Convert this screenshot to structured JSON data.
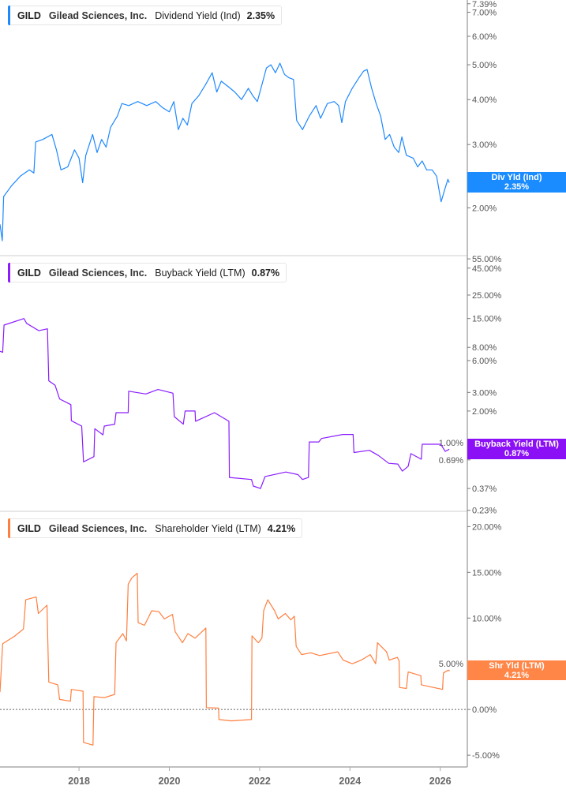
{
  "colors": {
    "dividend": "#1e88ff",
    "buyback": "#8a1cff",
    "shareholder": "#ff7f3f",
    "axis": "#aaaaaa"
  },
  "x_axis": {
    "ticks": [
      "2018",
      "2020",
      "2022",
      "2024",
      "2026"
    ],
    "tick_years": [
      2018,
      2020,
      2022,
      2024,
      2026
    ],
    "range": [
      2016.25,
      2026.35
    ]
  },
  "chart_data": [
    {
      "type": "line",
      "scale": "log",
      "legend": {
        "ticker": "GILD",
        "company": "Gilead Sciences, Inc.",
        "metric": "Dividend Yield (Ind)",
        "value": "2.35%"
      },
      "marker": {
        "label": "Div Yld (Ind)",
        "value": "2.35%"
      },
      "ylim": [
        1.48,
        7.57
      ],
      "yticks": [
        {
          "v": 7.39,
          "label": "7.39%"
        },
        {
          "v": 7.0,
          "label": "7.00%"
        },
        {
          "v": 6.0,
          "label": "6.00%"
        },
        {
          "v": 5.0,
          "label": "5.00%"
        },
        {
          "v": 4.0,
          "label": "4.00%"
        },
        {
          "v": 3.0,
          "label": "3.00%"
        },
        {
          "v": 2.0,
          "label": "2.00%"
        }
      ],
      "points": [
        [
          2016.25,
          1.8
        ],
        [
          2016.3,
          1.62
        ],
        [
          2016.33,
          2.15
        ],
        [
          2016.5,
          2.3
        ],
        [
          2016.7,
          2.45
        ],
        [
          2016.9,
          2.55
        ],
        [
          2017.0,
          2.5
        ],
        [
          2017.04,
          3.05
        ],
        [
          2017.2,
          3.1
        ],
        [
          2017.4,
          3.2
        ],
        [
          2017.5,
          2.9
        ],
        [
          2017.6,
          2.55
        ],
        [
          2017.75,
          2.6
        ],
        [
          2017.9,
          2.9
        ],
        [
          2018.0,
          2.75
        ],
        [
          2018.08,
          2.35
        ],
        [
          2018.15,
          2.8
        ],
        [
          2018.3,
          3.2
        ],
        [
          2018.4,
          2.85
        ],
        [
          2018.5,
          3.1
        ],
        [
          2018.6,
          2.95
        ],
        [
          2018.7,
          3.35
        ],
        [
          2018.85,
          3.6
        ],
        [
          2018.95,
          3.9
        ],
        [
          2019.1,
          3.85
        ],
        [
          2019.3,
          3.95
        ],
        [
          2019.5,
          3.85
        ],
        [
          2019.7,
          3.95
        ],
        [
          2019.85,
          3.8
        ],
        [
          2020.0,
          3.7
        ],
        [
          2020.1,
          3.95
        ],
        [
          2020.2,
          3.3
        ],
        [
          2020.3,
          3.55
        ],
        [
          2020.4,
          3.4
        ],
        [
          2020.5,
          3.9
        ],
        [
          2020.65,
          4.1
        ],
        [
          2020.8,
          4.4
        ],
        [
          2020.95,
          4.75
        ],
        [
          2021.05,
          4.2
        ],
        [
          2021.15,
          4.5
        ],
        [
          2021.3,
          4.35
        ],
        [
          2021.45,
          4.2
        ],
        [
          2021.6,
          4.0
        ],
        [
          2021.75,
          4.3
        ],
        [
          2021.85,
          4.1
        ],
        [
          2021.95,
          3.95
        ],
        [
          2022.05,
          4.4
        ],
        [
          2022.15,
          4.9
        ],
        [
          2022.25,
          5.0
        ],
        [
          2022.35,
          4.75
        ],
        [
          2022.45,
          5.05
        ],
        [
          2022.55,
          4.7
        ],
        [
          2022.65,
          4.6
        ],
        [
          2022.75,
          4.55
        ],
        [
          2022.82,
          3.5
        ],
        [
          2022.95,
          3.3
        ],
        [
          2023.1,
          3.6
        ],
        [
          2023.25,
          3.85
        ],
        [
          2023.35,
          3.55
        ],
        [
          2023.5,
          3.9
        ],
        [
          2023.65,
          3.95
        ],
        [
          2023.75,
          3.85
        ],
        [
          2023.82,
          3.45
        ],
        [
          2023.9,
          3.95
        ],
        [
          2024.05,
          4.3
        ],
        [
          2024.2,
          4.6
        ],
        [
          2024.3,
          4.8
        ],
        [
          2024.38,
          4.85
        ],
        [
          2024.48,
          4.3
        ],
        [
          2024.58,
          3.9
        ],
        [
          2024.68,
          3.6
        ],
        [
          2024.78,
          3.1
        ],
        [
          2024.88,
          3.2
        ],
        [
          2024.98,
          2.95
        ],
        [
          2025.08,
          2.85
        ],
        [
          2025.15,
          3.15
        ],
        [
          2025.25,
          2.8
        ],
        [
          2025.4,
          2.75
        ],
        [
          2025.5,
          2.6
        ],
        [
          2025.6,
          2.7
        ],
        [
          2025.7,
          2.55
        ],
        [
          2025.82,
          2.55
        ],
        [
          2025.92,
          2.45
        ],
        [
          2026.02,
          2.08
        ],
        [
          2026.1,
          2.25
        ],
        [
          2026.17,
          2.4
        ],
        [
          2026.2,
          2.35
        ]
      ]
    },
    {
      "type": "line",
      "scale": "log",
      "legend": {
        "ticker": "GILD",
        "company": "Gilead Sciences, Inc.",
        "metric": "Buyback Yield (LTM)",
        "value": "0.87%"
      },
      "marker": {
        "label": "Buyback Yield (LTM)",
        "value": "0.87%"
      },
      "ylim": [
        0.225,
        58
      ],
      "yticks": [
        {
          "v": 55,
          "label": "55.00%"
        },
        {
          "v": 45,
          "label": "45.00%"
        },
        {
          "v": 25,
          "label": "25.00%"
        },
        {
          "v": 15,
          "label": "15.00%"
        },
        {
          "v": 8,
          "label": "8.00%"
        },
        {
          "v": 6,
          "label": "6.00%"
        },
        {
          "v": 3,
          "label": "3.00%"
        },
        {
          "v": 2,
          "label": "2.00%"
        },
        {
          "v": 1,
          "label": "1.00%"
        },
        {
          "v": 0.69,
          "label": "0.69%"
        },
        {
          "v": 0.37,
          "label": "0.37%"
        },
        {
          "v": 0.23,
          "label": "0.23%"
        }
      ],
      "points": [
        [
          2016.25,
          7.35
        ],
        [
          2016.31,
          7.2
        ],
        [
          2016.34,
          13.0
        ],
        [
          2016.78,
          15.0
        ],
        [
          2016.84,
          13.5
        ],
        [
          2017.11,
          11.5
        ],
        [
          2017.3,
          12.0
        ],
        [
          2017.33,
          3.86
        ],
        [
          2017.47,
          3.5
        ],
        [
          2017.57,
          2.6
        ],
        [
          2017.82,
          2.3
        ],
        [
          2017.83,
          1.62
        ],
        [
          2018.06,
          1.44
        ],
        [
          2018.1,
          0.66
        ],
        [
          2018.33,
          0.74
        ],
        [
          2018.35,
          1.36
        ],
        [
          2018.53,
          1.19
        ],
        [
          2018.56,
          1.44
        ],
        [
          2018.79,
          1.5
        ],
        [
          2018.82,
          1.93
        ],
        [
          2019.09,
          1.93
        ],
        [
          2019.1,
          3.08
        ],
        [
          2019.48,
          2.9
        ],
        [
          2019.75,
          3.2
        ],
        [
          2020.08,
          2.95
        ],
        [
          2020.11,
          1.77
        ],
        [
          2020.31,
          1.5
        ],
        [
          2020.35,
          2.0
        ],
        [
          2020.57,
          2.0
        ],
        [
          2020.58,
          1.6
        ],
        [
          2021.0,
          1.93
        ],
        [
          2021.32,
          1.6
        ],
        [
          2021.33,
          0.47
        ],
        [
          2021.82,
          0.45
        ],
        [
          2021.86,
          0.39
        ],
        [
          2022.02,
          0.37
        ],
        [
          2022.12,
          0.48
        ],
        [
          2022.58,
          0.53
        ],
        [
          2022.85,
          0.5
        ],
        [
          2022.95,
          0.45
        ],
        [
          2023.08,
          0.47
        ],
        [
          2023.1,
          1.02
        ],
        [
          2023.31,
          1.02
        ],
        [
          2023.37,
          1.1
        ],
        [
          2023.84,
          1.2
        ],
        [
          2024.07,
          1.2
        ],
        [
          2024.09,
          0.81
        ],
        [
          2024.43,
          0.85
        ],
        [
          2024.63,
          0.76
        ],
        [
          2024.86,
          0.64
        ],
        [
          2025.06,
          0.63
        ],
        [
          2025.16,
          0.54
        ],
        [
          2025.29,
          0.6
        ],
        [
          2025.35,
          0.79
        ],
        [
          2025.58,
          0.7
        ],
        [
          2025.6,
          0.97
        ],
        [
          2026.01,
          0.97
        ],
        [
          2026.11,
          0.83
        ],
        [
          2026.2,
          0.87
        ]
      ]
    },
    {
      "type": "line",
      "scale": "linear",
      "legend": {
        "ticker": "GILD",
        "company": "Gilead Sciences, Inc.",
        "metric": "Shareholder Yield (LTM)",
        "value": "4.21%"
      },
      "marker": {
        "label": "Shr Yld (LTM)",
        "value": "4.21%"
      },
      "ylim": [
        -6.2,
        21.5
      ],
      "zero_line": true,
      "yticks": [
        {
          "v": 20,
          "label": "20.00%"
        },
        {
          "v": 15,
          "label": "15.00%"
        },
        {
          "v": 10,
          "label": "10.00%"
        },
        {
          "v": 5,
          "label": "5.00%"
        },
        {
          "v": 0,
          "label": "0.00%"
        },
        {
          "v": -5,
          "label": "-5.00%"
        }
      ],
      "points": [
        [
          2016.25,
          1.9
        ],
        [
          2016.31,
          7.2
        ],
        [
          2016.57,
          8.0
        ],
        [
          2016.77,
          8.8
        ],
        [
          2016.82,
          12.0
        ],
        [
          2017.05,
          12.3
        ],
        [
          2017.1,
          10.5
        ],
        [
          2017.29,
          11.4
        ],
        [
          2017.33,
          3.0
        ],
        [
          2017.53,
          2.7
        ],
        [
          2017.57,
          1.1
        ],
        [
          2017.81,
          0.9
        ],
        [
          2017.83,
          2.2
        ],
        [
          2018.09,
          2.0
        ],
        [
          2018.1,
          -3.6
        ],
        [
          2018.31,
          -3.9
        ],
        [
          2018.33,
          1.4
        ],
        [
          2018.57,
          1.3
        ],
        [
          2018.79,
          1.65
        ],
        [
          2018.82,
          7.3
        ],
        [
          2018.97,
          8.3
        ],
        [
          2019.05,
          7.5
        ],
        [
          2019.09,
          13.7
        ],
        [
          2019.17,
          14.4
        ],
        [
          2019.29,
          14.9
        ],
        [
          2019.31,
          9.5
        ],
        [
          2019.45,
          9.2
        ],
        [
          2019.61,
          10.8
        ],
        [
          2019.77,
          10.7
        ],
        [
          2019.89,
          9.9
        ],
        [
          2020.07,
          10.4
        ],
        [
          2020.13,
          8.5
        ],
        [
          2020.29,
          7.3
        ],
        [
          2020.41,
          8.3
        ],
        [
          2020.57,
          7.8
        ],
        [
          2020.81,
          8.9
        ],
        [
          2020.82,
          0.2
        ],
        [
          2021.09,
          0.15
        ],
        [
          2021.1,
          -1.1
        ],
        [
          2021.37,
          -1.25
        ],
        [
          2021.82,
          -1.1
        ],
        [
          2021.83,
          8.05
        ],
        [
          2021.97,
          7.3
        ],
        [
          2022.05,
          7.8
        ],
        [
          2022.09,
          10.8
        ],
        [
          2022.18,
          12.0
        ],
        [
          2022.33,
          10.8
        ],
        [
          2022.41,
          9.9
        ],
        [
          2022.57,
          10.5
        ],
        [
          2022.69,
          9.8
        ],
        [
          2022.77,
          10.2
        ],
        [
          2022.81,
          6.9
        ],
        [
          2022.93,
          6.0
        ],
        [
          2023.13,
          6.2
        ],
        [
          2023.33,
          5.9
        ],
        [
          2023.73,
          6.3
        ],
        [
          2023.85,
          5.4
        ],
        [
          2024.05,
          5.0
        ],
        [
          2024.25,
          5.4
        ],
        [
          2024.45,
          6.0
        ],
        [
          2024.57,
          5.0
        ],
        [
          2024.61,
          7.3
        ],
        [
          2024.81,
          6.3
        ],
        [
          2024.87,
          5.4
        ],
        [
          2025.05,
          5.7
        ],
        [
          2025.09,
          5.3
        ],
        [
          2025.1,
          2.4
        ],
        [
          2025.25,
          2.3
        ],
        [
          2025.29,
          4.1
        ],
        [
          2025.57,
          3.7
        ],
        [
          2025.58,
          2.7
        ],
        [
          2026.05,
          2.2
        ],
        [
          2026.07,
          4.0
        ],
        [
          2026.18,
          4.3
        ],
        [
          2026.21,
          4.21
        ]
      ]
    }
  ]
}
